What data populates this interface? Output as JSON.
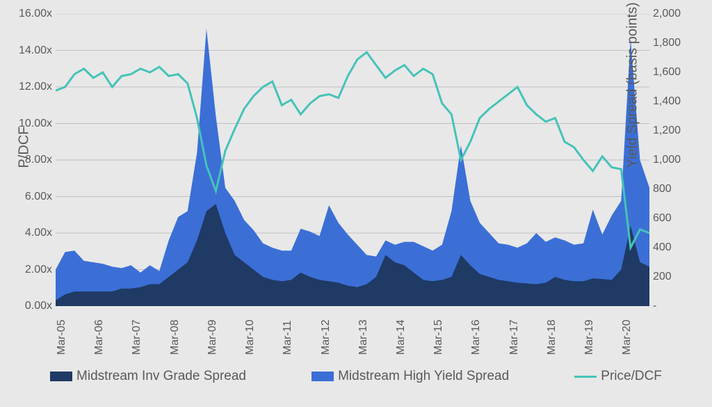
{
  "chart": {
    "type": "combo-area-line",
    "background_color": "#e8e8e8",
    "grid_color": "#bfbfbf",
    "text_color": "#595959",
    "axis_font_size": 16,
    "label_font_size": 20,
    "legend_font_size": 19,
    "y_left": {
      "label": "P/DCF",
      "min": 0,
      "max": 16,
      "step": 2,
      "ticks": [
        "0.00x",
        "2.00x",
        "4.00x",
        "6.00x",
        "8.00x",
        "10.00x",
        "12.00x",
        "14.00x",
        "16.00x"
      ]
    },
    "y_right": {
      "label": "Yield Spread (basis points)",
      "min": 0,
      "max": 2000,
      "step": 200,
      "ticks": [
        "-",
        "200",
        "400",
        "600",
        "800",
        "1,000",
        "1,200",
        "1,400",
        "1,600",
        "1,800",
        "2,000"
      ]
    },
    "x": {
      "labels": [
        "Mar-05",
        "Mar-06",
        "Mar-07",
        "Mar-08",
        "Mar-09",
        "Mar-10",
        "Mar-11",
        "Mar-12",
        "Mar-13",
        "Mar-14",
        "Mar-15",
        "Mar-16",
        "Mar-17",
        "Mar-18",
        "Mar-19",
        "Mar-20"
      ]
    },
    "series": {
      "inv_grade": {
        "label": "Midstream Inv Grade Spread",
        "type": "area",
        "color": "#1f3a64",
        "axis": "right",
        "values": [
          40,
          80,
          100,
          100,
          100,
          100,
          100,
          120,
          120,
          130,
          150,
          150,
          200,
          250,
          300,
          450,
          650,
          700,
          500,
          350,
          300,
          250,
          200,
          180,
          170,
          180,
          230,
          200,
          180,
          170,
          160,
          140,
          130,
          150,
          200,
          350,
          300,
          280,
          230,
          180,
          170,
          180,
          200,
          350,
          280,
          220,
          200,
          180,
          170,
          160,
          155,
          150,
          160,
          200,
          180,
          170,
          170,
          190,
          185,
          180,
          250,
          550,
          300,
          270
        ]
      },
      "high_yield": {
        "label": "Midstream High Yield Spread",
        "type": "area",
        "color": "#3b6fd6",
        "axis": "right",
        "values": [
          250,
          370,
          380,
          310,
          300,
          290,
          270,
          260,
          280,
          230,
          280,
          240,
          450,
          610,
          650,
          1050,
          1900,
          1300,
          810,
          720,
          590,
          520,
          430,
          400,
          380,
          380,
          530,
          510,
          480,
          690,
          570,
          490,
          420,
          350,
          340,
          450,
          420,
          440,
          440,
          410,
          380,
          420,
          650,
          1100,
          720,
          570,
          500,
          430,
          420,
          400,
          430,
          500,
          440,
          470,
          450,
          420,
          430,
          660,
          490,
          620,
          720,
          1830,
          1000,
          810
        ]
      },
      "price_dcf": {
        "label": "Price/DCF",
        "type": "line",
        "color": "#45c3b8",
        "line_width": 3,
        "axis": "left",
        "values": [
          11.8,
          12.0,
          12.7,
          13.0,
          12.5,
          12.8,
          12.0,
          12.6,
          12.7,
          13.0,
          12.8,
          13.1,
          12.6,
          12.7,
          12.2,
          10.3,
          7.7,
          6.3,
          8.5,
          9.7,
          10.8,
          11.5,
          12.0,
          12.3,
          11.0,
          11.3,
          10.5,
          11.1,
          11.5,
          11.6,
          11.4,
          12.6,
          13.5,
          13.9,
          13.2,
          12.5,
          12.9,
          13.2,
          12.6,
          13.0,
          12.7,
          11.1,
          10.5,
          8.0,
          9.0,
          10.3,
          10.8,
          11.2,
          11.6,
          12.0,
          11.0,
          10.5,
          10.1,
          10.3,
          9.0,
          8.7,
          8.0,
          7.4,
          8.2,
          7.6,
          7.5,
          3.2,
          4.2,
          4.0
        ]
      }
    }
  },
  "legend": [
    {
      "key": "inv_grade",
      "label": "Midstream Inv Grade Spread",
      "color": "#1f3a64",
      "type": "swatch"
    },
    {
      "key": "high_yield",
      "label": "Midstream High Yield Spread",
      "color": "#3b6fd6",
      "type": "swatch"
    },
    {
      "key": "price_dcf",
      "label": "Price/DCF",
      "color": "#45c3b8",
      "type": "line"
    }
  ]
}
